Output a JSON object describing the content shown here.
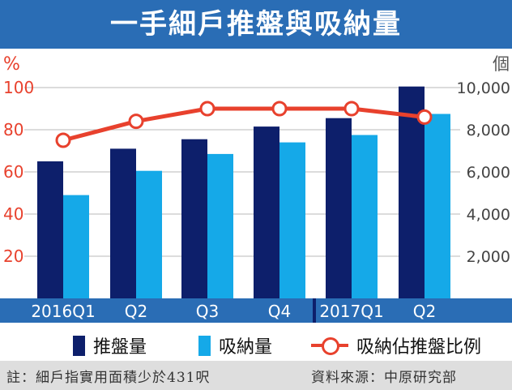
{
  "title": "一手細戶推盤與吸納量",
  "chart_data": {
    "type": "bar",
    "categories": [
      "2016Q1",
      "Q2",
      "Q3",
      "Q4",
      "2017Q1",
      "Q2"
    ],
    "series": [
      {
        "name": "推盤量",
        "values": [
          6500,
          7100,
          7550,
          8150,
          8550,
          10050
        ],
        "color": "#0d1f6b",
        "axis": "right"
      },
      {
        "name": "吸納量",
        "values": [
          4900,
          6050,
          6850,
          7400,
          7750,
          8750
        ],
        "color": "#15a9e8",
        "axis": "right"
      }
    ],
    "line_series": {
      "name": "吸納佔推盤比例",
      "values": [
        75,
        84,
        90,
        90,
        90,
        86
      ],
      "color": "#e8412d",
      "axis": "left"
    },
    "left_axis": {
      "unit": "%",
      "ticks": [
        "20",
        "40",
        "60",
        "80",
        "100"
      ],
      "range": [
        0,
        100
      ]
    },
    "right_axis": {
      "unit": "個",
      "ticks": [
        "2,000",
        "4,000",
        "6,000",
        "8,000",
        "10,000"
      ],
      "range": [
        0,
        10000
      ]
    },
    "grid": true
  },
  "legend": {
    "bar1": "推盤量",
    "bar2": "吸納量",
    "line": "吸納佔推盤比例"
  },
  "footnote": {
    "left": "註：細戶指實用面積少於431呎",
    "right": "資料來源：中原研究部"
  },
  "colors": {
    "title_bg": "#2a6db5",
    "axis_band": "#2a6db5",
    "left_tick": "#e8412d",
    "right_tick": "#444444",
    "footer_bg": "#dedede"
  }
}
